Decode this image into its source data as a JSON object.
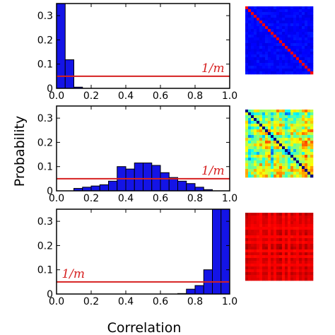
{
  "figure": {
    "xlabel": "Correlation",
    "ylabel": "Probability"
  },
  "chart_data": [
    {
      "type": "bar",
      "xlim": [
        0,
        1
      ],
      "ylim": [
        0,
        0.35
      ],
      "xticks": [
        "0.0",
        "0.2",
        "0.4",
        "0.6",
        "0.8",
        "1.0"
      ],
      "yticks": [
        "0",
        "0.1",
        "0.2",
        "0.3"
      ],
      "bin_width": 0.05,
      "bins": [
        0.0,
        0.05,
        0.1
      ],
      "values": [
        0.35,
        0.118,
        0.005
      ],
      "reference_line": {
        "value": 0.05,
        "label": "1/m",
        "color": "#d62020"
      },
      "heatmap": {
        "pattern": "diagonal",
        "colormap": "jet",
        "level": "low"
      }
    },
    {
      "type": "bar",
      "xlim": [
        0,
        1
      ],
      "ylim": [
        0,
        0.35
      ],
      "xticks": [
        "0.0",
        "0.2",
        "0.4",
        "0.6",
        "0.8",
        "1.0"
      ],
      "yticks": [
        "0",
        "0.1",
        "0.2",
        "0.3"
      ],
      "bin_width": 0.05,
      "bins": [
        0.1,
        0.15,
        0.2,
        0.25,
        0.3,
        0.35,
        0.4,
        0.45,
        0.5,
        0.55,
        0.6,
        0.65,
        0.7,
        0.75,
        0.8,
        0.85
      ],
      "values": [
        0.01,
        0.015,
        0.02,
        0.025,
        0.04,
        0.1,
        0.09,
        0.115,
        0.115,
        0.105,
        0.075,
        0.055,
        0.04,
        0.03,
        0.015,
        0.005
      ],
      "reference_line": {
        "value": 0.05,
        "label": "1/m",
        "color": "#d62020"
      },
      "heatmap": {
        "pattern": "mixed",
        "colormap": "jet",
        "level": "medium"
      }
    },
    {
      "type": "bar",
      "xlim": [
        0,
        1
      ],
      "ylim": [
        0,
        0.35
      ],
      "xticks": [
        "0.0",
        "0.2",
        "0.4",
        "0.6",
        "0.8",
        "1.0"
      ],
      "yticks": [
        "0",
        "0.1",
        "0.2",
        "0.3"
      ],
      "bin_width": 0.05,
      "bins": [
        0.7,
        0.75,
        0.8,
        0.85,
        0.9,
        0.95
      ],
      "values": [
        0.002,
        0.02,
        0.035,
        0.1,
        0.35,
        0.35
      ],
      "reference_line": {
        "value": 0.05,
        "label": "1/m",
        "color": "#d62020"
      },
      "heatmap": {
        "pattern": "uniform",
        "colormap": "jet",
        "level": "high"
      }
    }
  ]
}
